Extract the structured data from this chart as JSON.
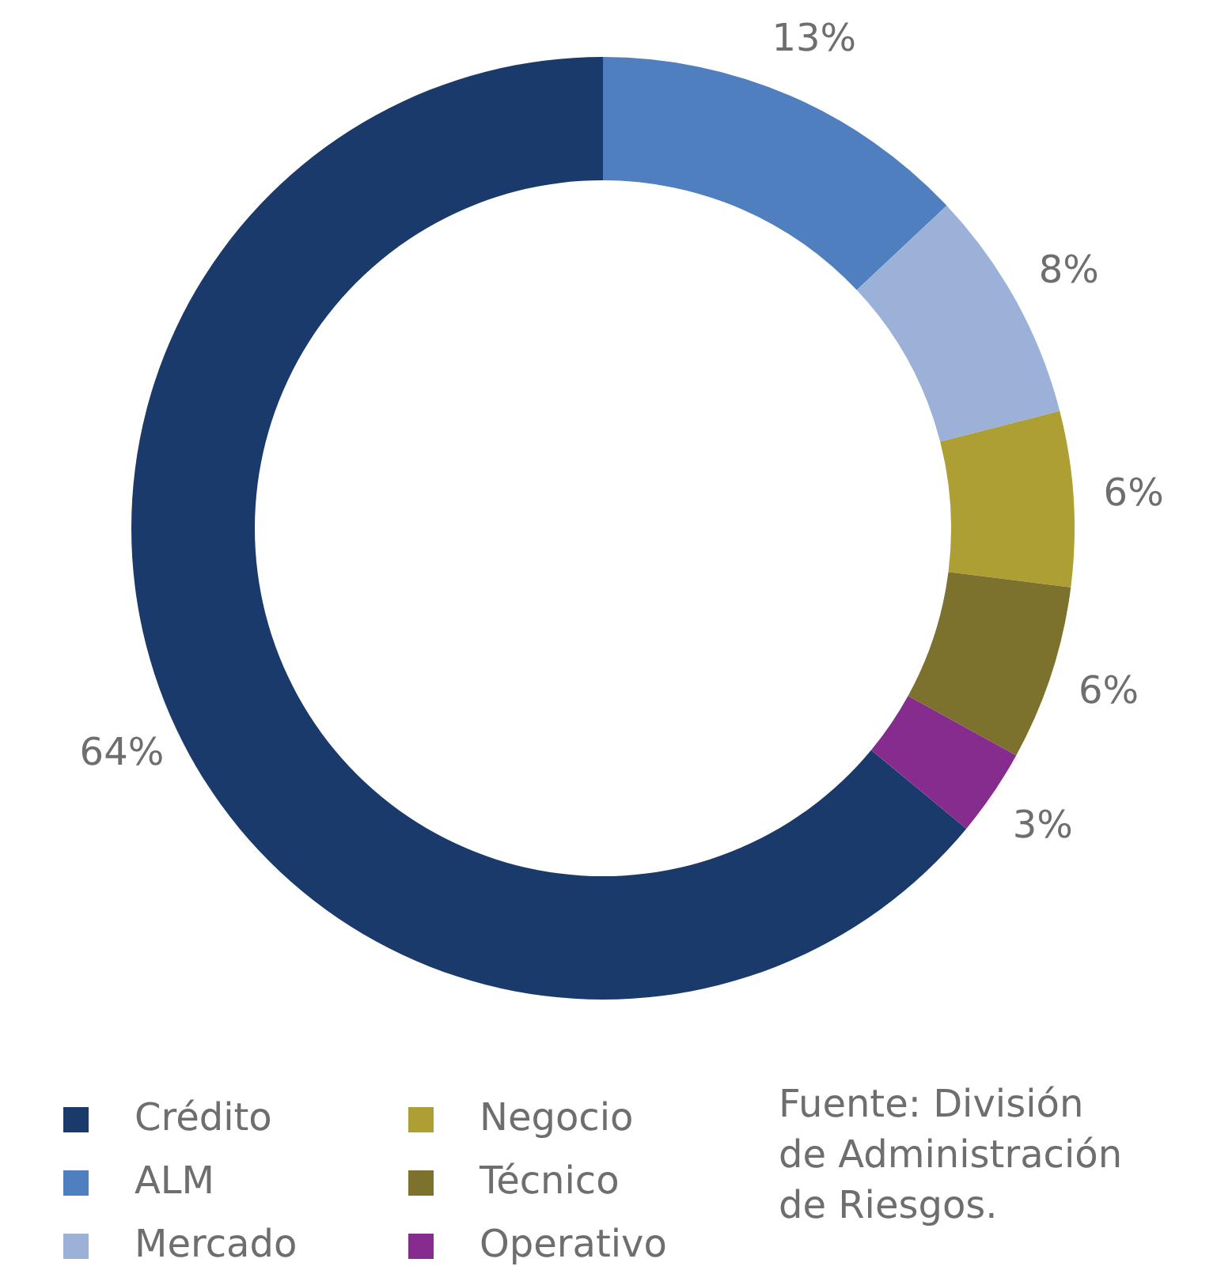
{
  "chart_data": {
    "type": "donut",
    "categories": [
      "Crédito",
      "ALM",
      "Mercado",
      "Negocio",
      "Técnico",
      "Operativo"
    ],
    "values": [
      64,
      13,
      8,
      6,
      6,
      3
    ],
    "colors": [
      "#1a3a6b",
      "#4f7fbf",
      "#9bb1d8",
      "#ad9f33",
      "#7d722d",
      "#862c8f"
    ],
    "value_labels": [
      "64%",
      "13%",
      "8%",
      "6%",
      "6%",
      "3%"
    ],
    "legend": "bottom left",
    "annotations": [
      "Fuente: División de Administración de Riesgos."
    ]
  }
}
